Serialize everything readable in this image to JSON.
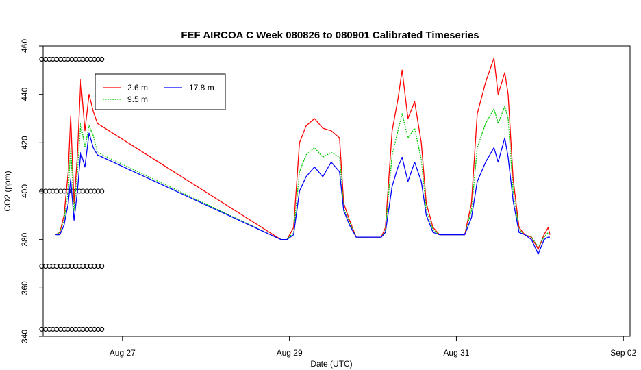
{
  "chart_data": {
    "type": "line",
    "title": "FEF AIRCOA C  Week 080826 to 080901  Calibrated Timeseries",
    "xlabel": "Date (UTC)",
    "ylabel": "CO2 (ppm)",
    "x_unit": "day of August 2008 (UTC)",
    "xlim": [
      26.05,
      33.08
    ],
    "ylim": [
      340,
      460
    ],
    "x_ticks": [
      {
        "value": 27,
        "label": "Aug 27"
      },
      {
        "value": 29,
        "label": "Aug 29"
      },
      {
        "value": 31,
        "label": "Aug 31"
      },
      {
        "value": 33,
        "label": "Sep 02"
      }
    ],
    "y_ticks": [
      {
        "value": 340,
        "label": "340"
      },
      {
        "value": 360,
        "label": "360"
      },
      {
        "value": 380,
        "label": "380"
      },
      {
        "value": 400,
        "label": "400"
      },
      {
        "value": 420,
        "label": "420"
      },
      {
        "value": 440,
        "label": "440"
      },
      {
        "value": 460,
        "label": "460"
      }
    ],
    "grid": false,
    "legend": {
      "position": "top-left",
      "columns": 2
    },
    "series": [
      {
        "name": "2.6 m",
        "color": "#ff0000",
        "line_style": "solid",
        "points": [
          [
            26.2,
            382
          ],
          [
            26.25,
            383
          ],
          [
            26.3,
            390
          ],
          [
            26.35,
            408
          ],
          [
            26.38,
            431
          ],
          [
            26.42,
            395
          ],
          [
            26.46,
            415
          ],
          [
            26.5,
            446
          ],
          [
            26.55,
            425
          ],
          [
            26.6,
            440
          ],
          [
            26.65,
            433
          ],
          [
            26.7,
            428
          ],
          [
            28.9,
            380
          ],
          [
            28.97,
            380
          ],
          [
            29.05,
            385
          ],
          [
            29.12,
            420
          ],
          [
            29.2,
            427
          ],
          [
            29.3,
            430
          ],
          [
            29.4,
            426
          ],
          [
            29.5,
            425
          ],
          [
            29.6,
            422
          ],
          [
            29.65,
            395
          ],
          [
            29.72,
            388
          ],
          [
            29.8,
            381
          ],
          [
            30.1,
            381
          ],
          [
            30.15,
            385
          ],
          [
            30.23,
            425
          ],
          [
            30.3,
            438
          ],
          [
            30.35,
            450
          ],
          [
            30.42,
            430
          ],
          [
            30.5,
            437
          ],
          [
            30.58,
            420
          ],
          [
            30.64,
            395
          ],
          [
            30.72,
            385
          ],
          [
            30.8,
            382
          ],
          [
            31.1,
            382
          ],
          [
            31.18,
            395
          ],
          [
            31.25,
            432
          ],
          [
            31.35,
            445
          ],
          [
            31.45,
            455
          ],
          [
            31.5,
            440
          ],
          [
            31.58,
            449
          ],
          [
            31.62,
            440
          ],
          [
            31.68,
            405
          ],
          [
            31.75,
            385
          ],
          [
            31.82,
            382
          ],
          [
            31.9,
            381
          ],
          [
            31.98,
            376
          ],
          [
            32.05,
            382
          ],
          [
            32.1,
            385
          ],
          [
            32.12,
            382
          ]
        ]
      },
      {
        "name": "9.5 m",
        "color": "#00cc00",
        "line_style": "dotted",
        "points": [
          [
            26.2,
            382
          ],
          [
            26.25,
            383
          ],
          [
            26.3,
            388
          ],
          [
            26.35,
            400
          ],
          [
            26.38,
            418
          ],
          [
            26.42,
            392
          ],
          [
            26.46,
            408
          ],
          [
            26.5,
            428
          ],
          [
            26.55,
            418
          ],
          [
            26.6,
            427
          ],
          [
            26.65,
            423
          ],
          [
            26.7,
            416
          ],
          [
            28.9,
            380
          ],
          [
            28.97,
            380
          ],
          [
            29.05,
            383
          ],
          [
            29.12,
            408
          ],
          [
            29.2,
            415
          ],
          [
            29.3,
            418
          ],
          [
            29.4,
            414
          ],
          [
            29.5,
            416
          ],
          [
            29.6,
            414
          ],
          [
            29.65,
            393
          ],
          [
            29.72,
            387
          ],
          [
            29.8,
            381
          ],
          [
            30.1,
            381
          ],
          [
            30.15,
            384
          ],
          [
            30.23,
            415
          ],
          [
            30.3,
            425
          ],
          [
            30.35,
            432
          ],
          [
            30.42,
            422
          ],
          [
            30.5,
            426
          ],
          [
            30.58,
            413
          ],
          [
            30.64,
            392
          ],
          [
            30.72,
            384
          ],
          [
            30.8,
            382
          ],
          [
            31.1,
            382
          ],
          [
            31.18,
            392
          ],
          [
            31.25,
            418
          ],
          [
            31.35,
            428
          ],
          [
            31.45,
            434
          ],
          [
            31.5,
            428
          ],
          [
            31.58,
            435
          ],
          [
            31.62,
            430
          ],
          [
            31.68,
            400
          ],
          [
            31.75,
            384
          ],
          [
            31.82,
            382
          ],
          [
            31.9,
            381
          ],
          [
            31.98,
            377
          ],
          [
            32.05,
            381
          ],
          [
            32.1,
            383
          ],
          [
            32.12,
            382
          ]
        ]
      },
      {
        "name": "17.8 m",
        "color": "#0000ff",
        "line_style": "solid",
        "points": [
          [
            26.2,
            382
          ],
          [
            26.25,
            382
          ],
          [
            26.3,
            386
          ],
          [
            26.35,
            395
          ],
          [
            26.38,
            405
          ],
          [
            26.42,
            388
          ],
          [
            26.46,
            400
          ],
          [
            26.5,
            416
          ],
          [
            26.55,
            410
          ],
          [
            26.6,
            424
          ],
          [
            26.65,
            418
          ],
          [
            26.7,
            415
          ],
          [
            28.9,
            380
          ],
          [
            28.97,
            380
          ],
          [
            29.05,
            382
          ],
          [
            29.12,
            400
          ],
          [
            29.2,
            406
          ],
          [
            29.3,
            410
          ],
          [
            29.4,
            406
          ],
          [
            29.5,
            412
          ],
          [
            29.6,
            408
          ],
          [
            29.65,
            392
          ],
          [
            29.72,
            386
          ],
          [
            29.8,
            381
          ],
          [
            30.1,
            381
          ],
          [
            30.15,
            383
          ],
          [
            30.23,
            402
          ],
          [
            30.3,
            410
          ],
          [
            30.35,
            414
          ],
          [
            30.42,
            404
          ],
          [
            30.5,
            412
          ],
          [
            30.58,
            404
          ],
          [
            30.64,
            390
          ],
          [
            30.72,
            383
          ],
          [
            30.8,
            382
          ],
          [
            31.1,
            382
          ],
          [
            31.18,
            389
          ],
          [
            31.25,
            404
          ],
          [
            31.35,
            412
          ],
          [
            31.45,
            418
          ],
          [
            31.5,
            412
          ],
          [
            31.58,
            422
          ],
          [
            31.62,
            414
          ],
          [
            31.68,
            396
          ],
          [
            31.75,
            383
          ],
          [
            31.82,
            382
          ],
          [
            31.9,
            380
          ],
          [
            31.98,
            374
          ],
          [
            32.05,
            380
          ],
          [
            32.1,
            381
          ],
          [
            32.12,
            381
          ]
        ]
      }
    ],
    "marker_rows": [
      {
        "y": 454.5,
        "x_from": 26.0,
        "x_to": 26.8,
        "label": "o"
      },
      {
        "y": 400,
        "x_from": 26.0,
        "x_to": 26.8,
        "label": "o"
      },
      {
        "y": 369,
        "x_from": 26.0,
        "x_to": 26.8,
        "label": "o"
      },
      {
        "y": 343,
        "x_from": 26.0,
        "x_to": 26.8,
        "label": "o"
      }
    ]
  }
}
